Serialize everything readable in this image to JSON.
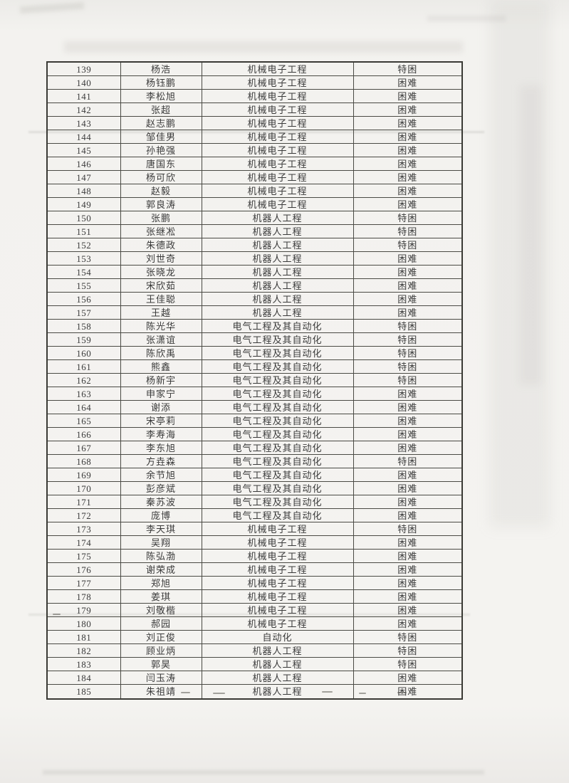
{
  "page": {
    "kind": "scanned-roster-page",
    "paper_color": "#f3f2ef",
    "line_color": "#4a4a44",
    "text_color": "#3b3b3b"
  },
  "table": {
    "rows": [
      {
        "no": "139",
        "name": "杨浩",
        "major": "机械电子工程",
        "status": "特困"
      },
      {
        "no": "140",
        "name": "杨钰鹏",
        "major": "机械电子工程",
        "status": "困难"
      },
      {
        "no": "141",
        "name": "李松旭",
        "major": "机械电子工程",
        "status": "困难"
      },
      {
        "no": "142",
        "name": "张超",
        "major": "机械电子工程",
        "status": "困难"
      },
      {
        "no": "143",
        "name": "赵志鹏",
        "major": "机械电子工程",
        "status": "困难"
      },
      {
        "no": "144",
        "name": "邹佳男",
        "major": "机械电子工程",
        "status": "困难"
      },
      {
        "no": "145",
        "name": "孙艳强",
        "major": "机械电子工程",
        "status": "困难"
      },
      {
        "no": "146",
        "name": "唐国东",
        "major": "机械电子工程",
        "status": "困难"
      },
      {
        "no": "147",
        "name": "杨可欣",
        "major": "机械电子工程",
        "status": "困难"
      },
      {
        "no": "148",
        "name": "赵毅",
        "major": "机械电子工程",
        "status": "困难"
      },
      {
        "no": "149",
        "name": "郭良涛",
        "major": "机械电子工程",
        "status": "困难"
      },
      {
        "no": "150",
        "name": "张鹏",
        "major": "机器人工程",
        "status": "特困"
      },
      {
        "no": "151",
        "name": "张继凇",
        "major": "机器人工程",
        "status": "特困"
      },
      {
        "no": "152",
        "name": "朱德政",
        "major": "机器人工程",
        "status": "特困"
      },
      {
        "no": "153",
        "name": "刘世奇",
        "major": "机器人工程",
        "status": "困难"
      },
      {
        "no": "154",
        "name": "张晓龙",
        "major": "机器人工程",
        "status": "困难"
      },
      {
        "no": "155",
        "name": "宋欣茹",
        "major": "机器人工程",
        "status": "困难"
      },
      {
        "no": "156",
        "name": "王佳聪",
        "major": "机器人工程",
        "status": "困难"
      },
      {
        "no": "157",
        "name": "王越",
        "major": "机器人工程",
        "status": "困难"
      },
      {
        "no": "158",
        "name": "陈光华",
        "major": "电气工程及其自动化",
        "status": "特困"
      },
      {
        "no": "159",
        "name": "张潇谊",
        "major": "电气工程及其自动化",
        "status": "特困"
      },
      {
        "no": "160",
        "name": "陈欣禹",
        "major": "电气工程及其自动化",
        "status": "特困"
      },
      {
        "no": "161",
        "name": "熊鑫",
        "major": "电气工程及其自动化",
        "status": "特困"
      },
      {
        "no": "162",
        "name": "杨新宇",
        "major": "电气工程及其自动化",
        "status": "特困"
      },
      {
        "no": "163",
        "name": "申家宁",
        "major": "电气工程及其自动化",
        "status": "困难"
      },
      {
        "no": "164",
        "name": "谢添",
        "major": "电气工程及其自动化",
        "status": "困难"
      },
      {
        "no": "165",
        "name": "宋亭莉",
        "major": "电气工程及其自动化",
        "status": "困难"
      },
      {
        "no": "166",
        "name": "李寿海",
        "major": "电气工程及其自动化",
        "status": "困难"
      },
      {
        "no": "167",
        "name": "李东旭",
        "major": "电气工程及其自动化",
        "status": "困难"
      },
      {
        "no": "168",
        "name": "方垚森",
        "major": "电气工程及其自动化",
        "status": "特困"
      },
      {
        "no": "169",
        "name": "余节旭",
        "major": "电气工程及其自动化",
        "status": "困难"
      },
      {
        "no": "170",
        "name": "彭彦斌",
        "major": "电气工程及其自动化",
        "status": "困难"
      },
      {
        "no": "171",
        "name": "秦苏波",
        "major": "电气工程及其自动化",
        "status": "困难"
      },
      {
        "no": "172",
        "name": "庞博",
        "major": "电气工程及其自动化",
        "status": "困难"
      },
      {
        "no": "173",
        "name": "李天琪",
        "major": "机械电子工程",
        "status": "特困"
      },
      {
        "no": "174",
        "name": "吴翔",
        "major": "机械电子工程",
        "status": "困难"
      },
      {
        "no": "175",
        "name": "陈弘渤",
        "major": "机械电子工程",
        "status": "困难"
      },
      {
        "no": "176",
        "name": "谢荣成",
        "major": "机械电子工程",
        "status": "困难"
      },
      {
        "no": "177",
        "name": "郑旭",
        "major": "机械电子工程",
        "status": "困难"
      },
      {
        "no": "178",
        "name": "姜琪",
        "major": "机械电子工程",
        "status": "困难"
      },
      {
        "no": "179",
        "name": "刘敬楷",
        "major": "机械电子工程",
        "status": "困难"
      },
      {
        "no": "180",
        "name": "郝园",
        "major": "机械电子工程",
        "status": "困难"
      },
      {
        "no": "181",
        "name": "刘正俊",
        "major": "自动化",
        "status": "特困"
      },
      {
        "no": "182",
        "name": "顾业炳",
        "major": "机器人工程",
        "status": "特困"
      },
      {
        "no": "183",
        "name": "郭昊",
        "major": "机器人工程",
        "status": "特困"
      },
      {
        "no": "184",
        "name": "闫玉涛",
        "major": "机器人工程",
        "status": "困难"
      },
      {
        "no": "185",
        "name": "朱祖靖",
        "major": "机器人工程",
        "status": "困难"
      }
    ]
  }
}
